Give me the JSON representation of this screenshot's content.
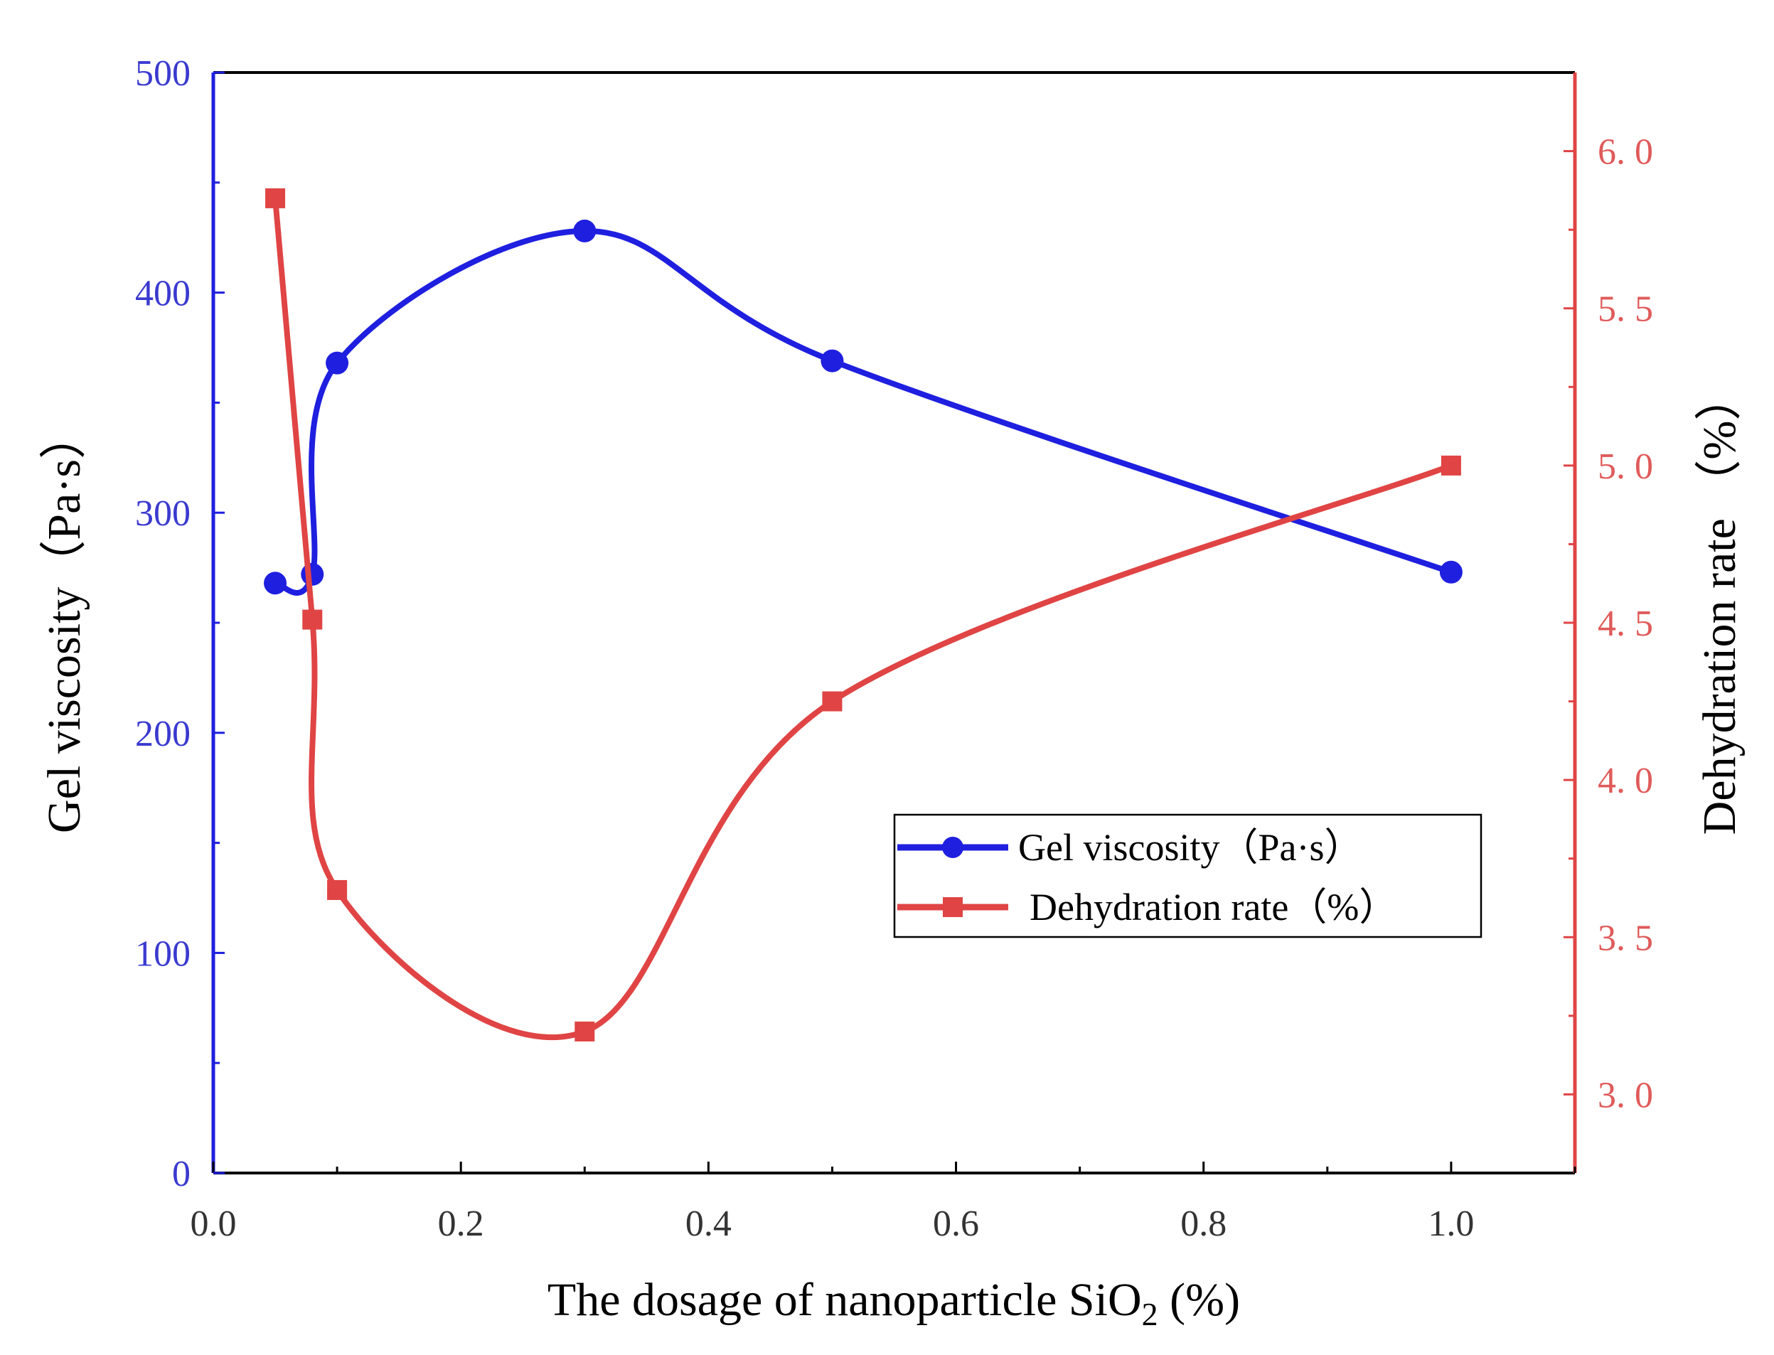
{
  "chart_data": {
    "type": "line",
    "title": "",
    "xlabel_main": "The dosage of nanoparticle SiO",
    "xlabel_sub": "2",
    "xlabel_tail": " (%)",
    "ylabel_left": "Gel viscosity（Pa·s）",
    "ylabel_right": "Dehydration rate （%）",
    "xlim": [
      0.0,
      1.1
    ],
    "ylim_left": [
      0,
      500
    ],
    "ylim_right": [
      2.75,
      6.25
    ],
    "x_ticks": [
      "0.0",
      "0.2",
      "0.4",
      "0.6",
      "0.8",
      "1.0"
    ],
    "y_left_ticks": [
      "0",
      "100",
      "200",
      "300",
      "400",
      "500"
    ],
    "y_right_ticks": [
      "3.0",
      "3.5",
      "4.0",
      "4.5",
      "5.0",
      "5.5",
      "6.0"
    ],
    "legend_position": "center-right",
    "series": [
      {
        "name": "Gel viscosity（Pa·s）",
        "axis": "left",
        "color": "#1f1fe0",
        "marker": "circle",
        "x": [
          0.05,
          0.08,
          0.1,
          0.3,
          0.5,
          1.0
        ],
        "values": [
          268,
          272,
          368,
          428,
          369,
          273
        ]
      },
      {
        "name": "Dehydration rate（%）",
        "axis": "right",
        "color": "#e04444",
        "marker": "square",
        "x": [
          0.05,
          0.08,
          0.1,
          0.3,
          0.5,
          1.0
        ],
        "values": [
          5.85,
          4.51,
          3.65,
          3.2,
          4.25,
          5.0
        ]
      }
    ]
  }
}
